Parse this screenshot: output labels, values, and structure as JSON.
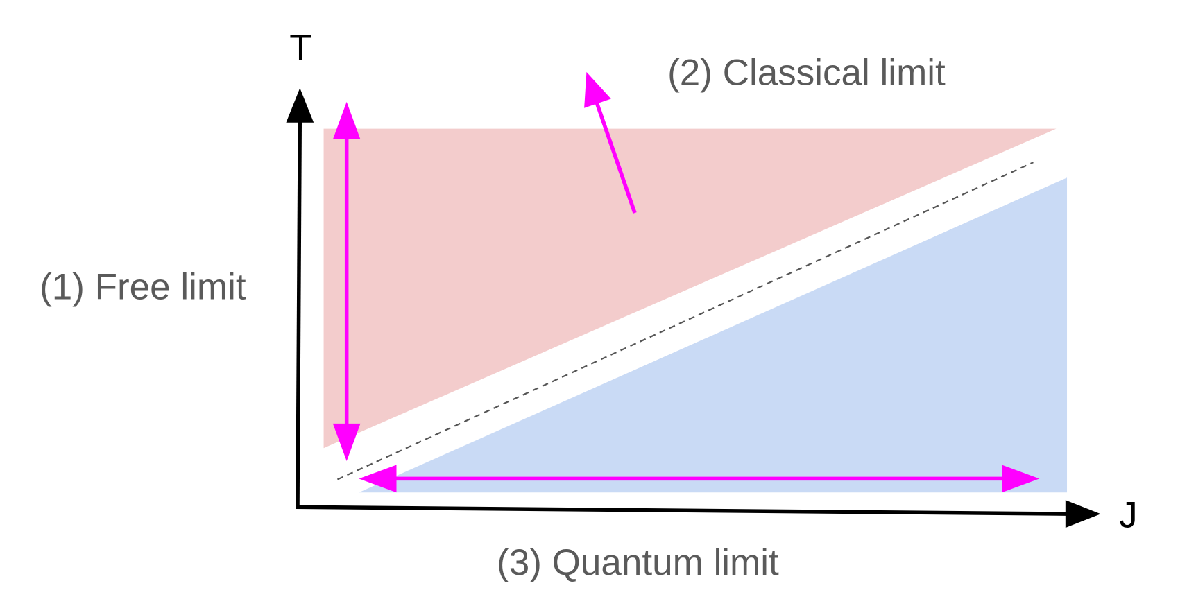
{
  "axes": {
    "y_label": "T",
    "x_label": "J"
  },
  "labels": {
    "free_limit": "(1) Free limit",
    "classical_limit": "(2) Classical limit",
    "quantum_limit": "(3) Quantum limit"
  }
}
